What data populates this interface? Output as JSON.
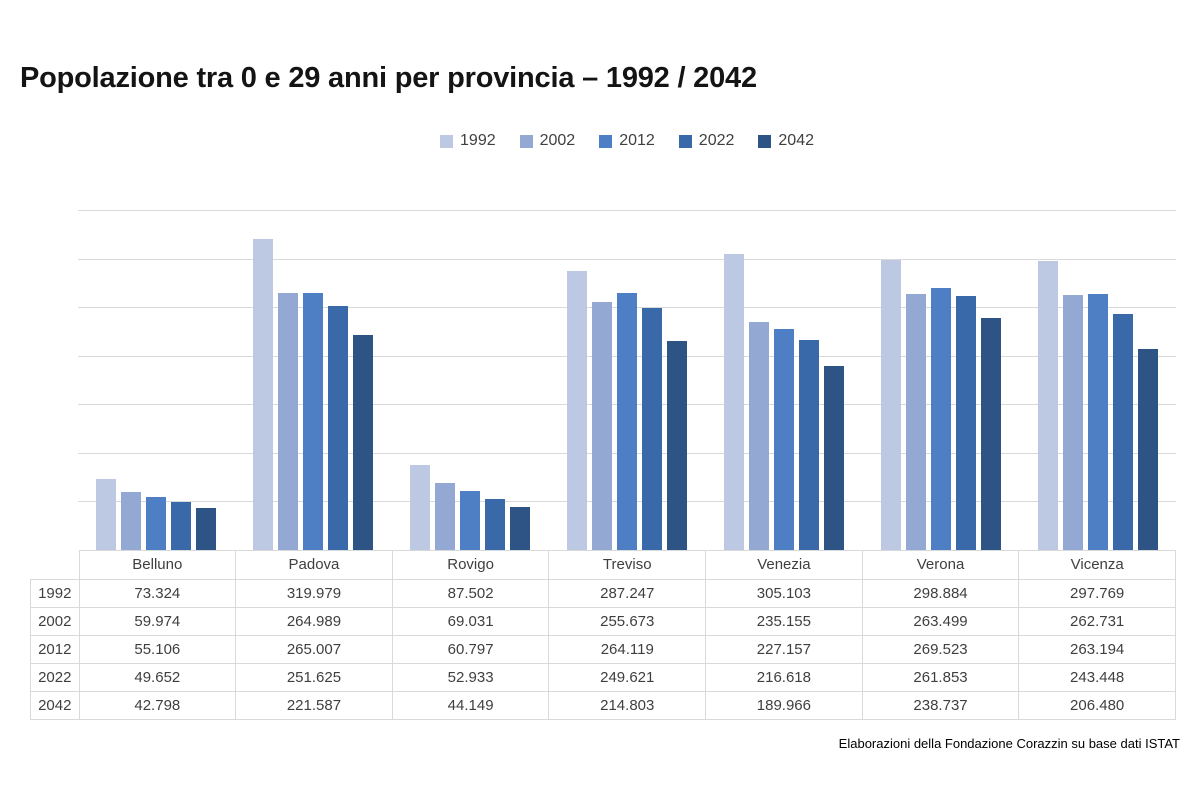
{
  "page": {
    "title": "Popolazione tra 0 e 29 anni per provincia – 1992 / 2042",
    "footer": "Elaborazioni della Fondazione Corazzin su base dati ISTAT"
  },
  "colors": {
    "series": [
      "#BDC9E3",
      "#93A9D4",
      "#4E7EC4",
      "#3A69A9",
      "#2E5486"
    ],
    "gridline": "#D9D9D9",
    "table_border": "#D9D9D9",
    "title_text": "#141414",
    "body_text": "#404040",
    "table_text": "#3F3F3F"
  },
  "chart_data": {
    "type": "bar",
    "title": "Popolazione tra 0 e 29 anni per provincia – 1992 / 2042",
    "categories": [
      "Belluno",
      "Padova",
      "Rovigo",
      "Treviso",
      "Venezia",
      "Verona",
      "Vicenza"
    ],
    "series": [
      {
        "name": "1992",
        "values": [
          73324,
          319979,
          87502,
          287247,
          305103,
          298884,
          297769
        ]
      },
      {
        "name": "2002",
        "values": [
          59974,
          264989,
          69031,
          255673,
          235155,
          263499,
          262731
        ]
      },
      {
        "name": "2012",
        "values": [
          55106,
          265007,
          60797,
          264119,
          227157,
          269523,
          263194
        ]
      },
      {
        "name": "2022",
        "values": [
          49652,
          251625,
          52933,
          249621,
          216618,
          261853,
          243448
        ]
      },
      {
        "name": "2042",
        "values": [
          42798,
          221587,
          44149,
          214803,
          189966,
          238737,
          206480
        ]
      }
    ],
    "ylim": [
      0,
      350000
    ],
    "grid_interval": 50000,
    "y_axis_labels_visible": false,
    "legend_position": "top",
    "data_table_shown": true,
    "number_format": "thousands-dot",
    "footer": "Elaborazioni della Fondazione Corazzin su base dati ISTAT"
  }
}
